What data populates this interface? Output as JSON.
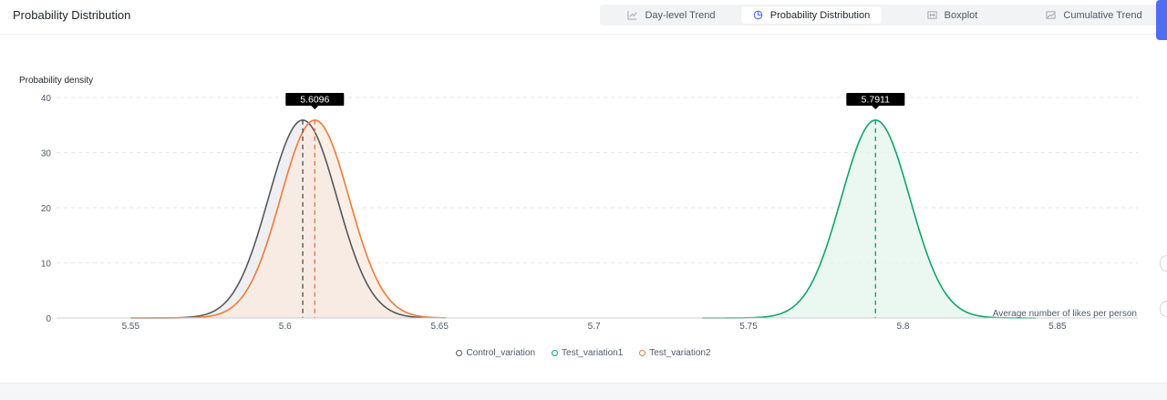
{
  "header": {
    "title": "Probability Distribution",
    "tabs": [
      {
        "label": "Day-level Trend",
        "icon": "line-chart-icon",
        "active": false
      },
      {
        "label": "Probability Distribution",
        "icon": "pie-chart-icon",
        "active": true
      },
      {
        "label": "Boxplot",
        "icon": "boxplot-icon",
        "active": false
      },
      {
        "label": "Cumulative Trend",
        "icon": "area-chart-icon",
        "active": false
      }
    ]
  },
  "chart_data": {
    "type": "area",
    "title": "",
    "ylabel": "Probability density",
    "xlabel": "Average number of likes per person",
    "xlim": [
      5.526,
      5.876
    ],
    "ylim": [
      0,
      40
    ],
    "xticks": [
      "5.55",
      "5.6",
      "5.65",
      "5.7",
      "5.75",
      "5.8",
      "5.85"
    ],
    "yticks": [
      "0",
      "10",
      "20",
      "30",
      "40"
    ],
    "grid": true,
    "legend_position": "bottom",
    "series": [
      {
        "name": "Control_variation",
        "color": "#55585e",
        "fill": "#e9eaec",
        "mean": 5.6057,
        "std": 0.0111,
        "peak": 35.9,
        "range": [
          5.55,
          5.645
        ]
      },
      {
        "name": "Test_variation1",
        "color": "#12a36d",
        "fill": "#e3f5ec",
        "mean": 5.7911,
        "std": 0.0111,
        "peak": 35.9,
        "range": [
          5.735,
          5.843
        ]
      },
      {
        "name": "Test_variation2",
        "color": "#ee7a38",
        "fill": "#fbe9df",
        "mean": 5.6096,
        "std": 0.0111,
        "peak": 35.9,
        "range": [
          5.55,
          5.652
        ]
      }
    ],
    "annotations": [
      {
        "label": "5.6096",
        "x": 5.6096
      },
      {
        "label": "5.7911",
        "x": 5.7911
      }
    ]
  }
}
